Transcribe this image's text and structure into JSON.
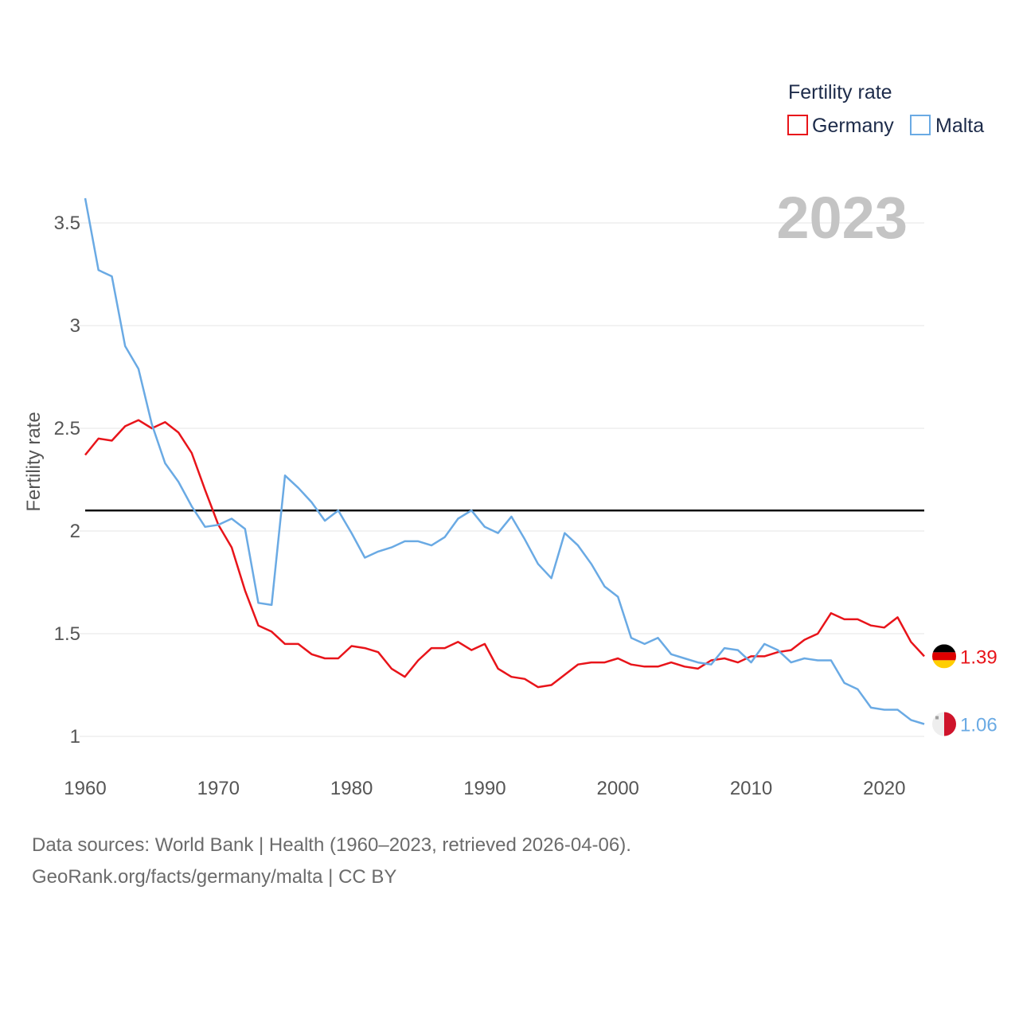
{
  "chart_data": {
    "type": "line",
    "ylabel": "Fertility rate",
    "xlabel": "",
    "xlim": [
      1960,
      2023
    ],
    "ylim": [
      0.9,
      3.65
    ],
    "y_ticks": [
      1,
      1.5,
      2,
      2.5,
      3,
      3.5
    ],
    "y_tick_labels": [
      "1",
      "1.5",
      "2",
      "2.5",
      "3",
      "3.5"
    ],
    "x_ticks": [
      1960,
      1970,
      1980,
      1990,
      2000,
      2010,
      2020
    ],
    "x_tick_labels": [
      "1960",
      "1970",
      "1980",
      "1990",
      "2000",
      "2010",
      "2020"
    ],
    "reference_line": 2.1,
    "year_label": "2023",
    "legend": {
      "title": "Fertility rate",
      "position": "top-right"
    },
    "x": [
      1960,
      1961,
      1962,
      1963,
      1964,
      1965,
      1966,
      1967,
      1968,
      1969,
      1970,
      1971,
      1972,
      1973,
      1974,
      1975,
      1976,
      1977,
      1978,
      1979,
      1980,
      1981,
      1982,
      1983,
      1984,
      1985,
      1986,
      1987,
      1988,
      1989,
      1990,
      1991,
      1992,
      1993,
      1994,
      1995,
      1996,
      1997,
      1998,
      1999,
      2000,
      2001,
      2002,
      2003,
      2004,
      2005,
      2006,
      2007,
      2008,
      2009,
      2010,
      2011,
      2012,
      2013,
      2014,
      2015,
      2016,
      2017,
      2018,
      2019,
      2020,
      2021,
      2022,
      2023
    ],
    "series": [
      {
        "name": "Germany",
        "color": "#e8141a",
        "end_label": "1.39",
        "flag": "germany-flag-icon",
        "values": [
          2.37,
          2.45,
          2.44,
          2.51,
          2.54,
          2.5,
          2.53,
          2.48,
          2.38,
          2.2,
          2.03,
          1.92,
          1.71,
          1.54,
          1.51,
          1.45,
          1.45,
          1.4,
          1.38,
          1.38,
          1.44,
          1.43,
          1.41,
          1.33,
          1.29,
          1.37,
          1.43,
          1.43,
          1.46,
          1.42,
          1.45,
          1.33,
          1.29,
          1.28,
          1.24,
          1.25,
          1.3,
          1.35,
          1.36,
          1.36,
          1.38,
          1.35,
          1.34,
          1.34,
          1.36,
          1.34,
          1.33,
          1.37,
          1.38,
          1.36,
          1.39,
          1.39,
          1.41,
          1.42,
          1.47,
          1.5,
          1.6,
          1.57,
          1.57,
          1.54,
          1.53,
          1.58,
          1.46,
          1.39
        ]
      },
      {
        "name": "Malta",
        "color": "#6aaae4",
        "end_label": "1.06",
        "flag": "malta-flag-icon",
        "values": [
          3.62,
          3.27,
          3.24,
          2.9,
          2.79,
          2.52,
          2.33,
          2.24,
          2.12,
          2.02,
          2.03,
          2.06,
          2.01,
          1.65,
          1.64,
          2.27,
          2.21,
          2.14,
          2.05,
          2.1,
          1.99,
          1.87,
          1.9,
          1.92,
          1.95,
          1.95,
          1.93,
          1.97,
          2.06,
          2.1,
          2.02,
          1.99,
          2.07,
          1.96,
          1.84,
          1.77,
          1.99,
          1.93,
          1.84,
          1.73,
          1.68,
          1.48,
          1.45,
          1.48,
          1.4,
          1.38,
          1.36,
          1.35,
          1.43,
          1.42,
          1.36,
          1.45,
          1.42,
          1.36,
          1.38,
          1.37,
          1.37,
          1.26,
          1.23,
          1.14,
          1.13,
          1.13,
          1.08,
          1.06
        ]
      }
    ]
  },
  "footer": {
    "line1": "Data sources: World Bank | Health (1960–2023, retrieved 2026-04-06).",
    "line2": "GeoRank.org/facts/germany/malta | CC BY"
  }
}
